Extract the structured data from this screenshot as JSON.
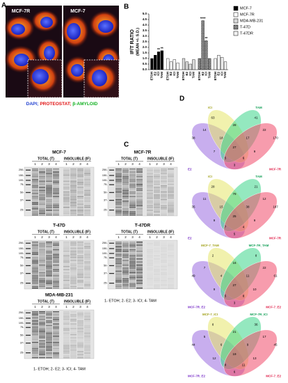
{
  "panel_a": {
    "letter": "A",
    "left_label": "MCF-7R",
    "right_label": "MCF-7",
    "caption": [
      "DAPI;",
      "PROTEOSTAT;",
      "β-AMYLOID"
    ],
    "caption_colors": [
      "#1f3fd0",
      "#e01010",
      "#10b020"
    ]
  },
  "chart_data": {
    "type": "bar",
    "letter": "B",
    "ylabel": [
      "IF/T RATIO",
      "(MEAN +/- S.D.)"
    ],
    "categories": [
      "ETOH",
      "E2",
      "ICI",
      "TAM"
    ],
    "series": [
      {
        "name": "MCF-7",
        "color": "#000000",
        "values": [
          1.0,
          1.3,
          1.6,
          1.7
        ],
        "stars": [
          null,
          null,
          "**",
          "**"
        ]
      },
      {
        "name": "MCF-7R",
        "color": "#ffffff",
        "values": [
          1.0,
          0.7,
          0.9,
          0.6
        ],
        "stars": [
          null,
          null,
          null,
          null
        ]
      },
      {
        "name": "MDA-MB-231",
        "color": "#d9d9d9",
        "values": [
          1.0,
          0.7,
          0.5,
          0.9
        ],
        "stars": [
          null,
          null,
          null,
          null
        ]
      },
      {
        "name": "T-47D",
        "color": "#ffffff",
        "hatch": true,
        "values": [
          1.0,
          4.4,
          2.6,
          1.0
        ],
        "stars": [
          null,
          "****",
          "**",
          null
        ]
      },
      {
        "name": "T-47DR",
        "color": "#f2f2f2",
        "values": [
          1.0,
          1.3,
          1.1,
          0.7
        ],
        "stars": [
          null,
          null,
          null,
          null
        ]
      }
    ],
    "ylim": [
      0,
      5
    ],
    "yticks": [
      {
        "value": 0,
        "label": "0.0"
      },
      {
        "value": 0.5,
        "label": "0.5"
      },
      {
        "value": 1,
        "label": "1.0"
      },
      {
        "value": 1.5,
        "label": "1.5"
      },
      {
        "value": 2,
        "label": "2.0"
      },
      {
        "value": 2.5,
        "label": "2.5"
      },
      {
        "value": 3,
        "label": "3.0"
      },
      {
        "value": 3.5,
        "label": "3.5"
      },
      {
        "value": 4,
        "label": "4.0"
      },
      {
        "value": 4.5,
        "label": "4.5"
      },
      {
        "value": 5,
        "label": "5.0"
      }
    ]
  },
  "panel_c": {
    "letter": "C",
    "key": "1- ETOH; 2- E2; 3- ICI; 4- TAM",
    "gels": [
      {
        "title": "MCF-7",
        "total": "TOTAL (T)",
        "insoluble": "INSOLUBLE (IF)",
        "lanes": [
          "1",
          "2",
          "3",
          "4"
        ],
        "markers": [
          "250-",
          "150-",
          "100-",
          "75-",
          "50-",
          "37-",
          "25-"
        ]
      },
      {
        "title": "MCF-7R",
        "total": "TOTAL (T)",
        "insoluble": "INSOLUBLE (IF)",
        "lanes": [
          "1",
          "2",
          "3",
          "4"
        ],
        "markers": [
          "250-",
          "150-",
          "100-",
          "75-",
          "50-",
          "37-",
          "25-"
        ]
      },
      {
        "title": "T-47D",
        "total": "TOTAL (T)",
        "insoluble": "INSOLUBLE (IF)",
        "lanes": [
          "1",
          "2",
          "3",
          "4"
        ],
        "markers": [
          "250-",
          "150-",
          "100-",
          "75-",
          "50-",
          "37-",
          "25-"
        ]
      },
      {
        "title": "T-47DR",
        "total": "TOTAL (T)",
        "insoluble": "INSOLUBLE (IF)",
        "lanes": [
          "1",
          "2",
          "3",
          "4"
        ],
        "markers": [
          "250-",
          "150-",
          "100-",
          "75-",
          "50-",
          "37-",
          "25-"
        ]
      },
      {
        "title": "MDA-MB-231",
        "total": "TOTAL (T)",
        "insoluble": "INSOLUBLE (IF)",
        "lanes": [
          "1",
          "2",
          "3",
          "4"
        ],
        "markers": [
          "250-",
          "150-",
          "100-",
          "75-",
          "50-",
          "37-",
          "25-"
        ]
      }
    ]
  },
  "panel_d": {
    "letter": "D",
    "colors": [
      "#9b6be0",
      "#e6e66a",
      "#3cd68a",
      "#f04a6a"
    ],
    "venns": [
      {
        "sets": [
          "E2",
          "ICI",
          "TAM",
          "MCF-7R"
        ],
        "counts": [
          38,
          63,
          41,
          170,
          14,
          7,
          3,
          28,
          9,
          22,
          18,
          5,
          6,
          17,
          27
        ]
      },
      {
        "sets": [
          "E2",
          "ICI",
          "TAM",
          "MCF-7R"
        ],
        "counts": [
          35,
          28,
          21,
          187,
          11,
          9,
          5,
          79,
          9,
          12,
          15,
          7,
          4,
          38,
          25
        ]
      },
      {
        "sets": [
          "MCF-7R_E2",
          "MCF-7_TAM",
          "MCF-7R_TAM",
          "MCF-7_E2"
        ],
        "counts": [
          49,
          2,
          8,
          61,
          7,
          9,
          3,
          16,
          10,
          22,
          4,
          5,
          8,
          11,
          27
        ]
      },
      {
        "sets": [
          "MCF-7R_E2",
          "MCF-7_ICI",
          "MCF-7R_ICI",
          "MCF-7_E2"
        ],
        "counts": [
          44,
          8,
          36,
          45,
          5,
          12,
          6,
          21,
          13,
          17,
          6,
          8,
          11,
          9,
          19
        ]
      }
    ]
  }
}
